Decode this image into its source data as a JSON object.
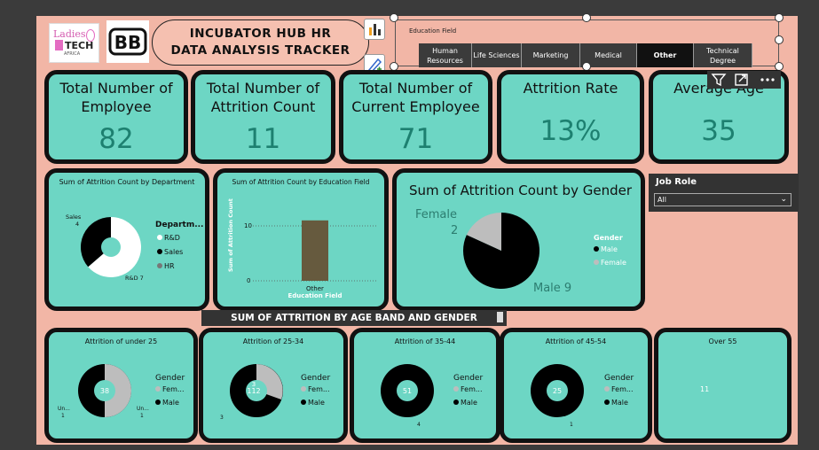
{
  "header": {
    "logo_ladies": "Ladies",
    "logo_tech": "TECH",
    "logo_africa": "AFRICA",
    "title": "INCUBATOR HUB HR DATA ANALYSIS  TRACKER"
  },
  "slicer": {
    "label": "Education Field",
    "options": [
      "Human Resources",
      "Life Sciences",
      "Marketing",
      "Medical",
      "Other",
      "Technical Degree"
    ],
    "selected": "Other"
  },
  "kpis": [
    {
      "title": "Total Number of Employee",
      "value": "82"
    },
    {
      "title": "Total Number of Attrition Count",
      "value": "11"
    },
    {
      "title": "Total Number of Current Employee",
      "value": "71"
    },
    {
      "title": "Attrition Rate",
      "value": "13%"
    },
    {
      "title": "Average Age",
      "value": "35"
    }
  ],
  "dept_chart": {
    "title": "Sum of Attrition Count by Department",
    "legend_title": "Departm...",
    "legend": [
      "R&D",
      "Sales",
      "HR"
    ],
    "label_sales": "Sales",
    "label_sales_val": "4",
    "label_rd": "R&D 7"
  },
  "edu_chart": {
    "title": "Sum of Attrition Count by Education Field",
    "ylabel": "Sum of Attrition Count",
    "xlabel": "Education Field",
    "tick_10": "10",
    "tick_0": "0",
    "category": "Other"
  },
  "gender_chart": {
    "title": "Sum of Attrition Count by Gender",
    "label_female": "Female",
    "label_female_val": "2",
    "label_male": "Male 9",
    "legend_title": "Gender",
    "legend": [
      "Male",
      "Female"
    ]
  },
  "job_role": {
    "label": "Job Role",
    "value": "All"
  },
  "banner": "SUM OF ATTRITION BY AGE BAND AND GENDER",
  "age_cards": [
    {
      "title": "Attrition of under 25",
      "center": "38",
      "legend_title": "Gender",
      "legend": [
        "Fem...",
        "Male"
      ],
      "lbl_a": "Un...",
      "lbl_a2": "1",
      "lbl_b": "Un...",
      "lbl_b2": "1"
    },
    {
      "title": "Attrition of 25-34",
      "center": "112",
      "top": "3",
      "legend_title": "Gender",
      "legend": [
        "Fem...",
        "Male"
      ],
      "lbl_a": "3"
    },
    {
      "title": "Attrition of 35-44",
      "center": "51",
      "legend_title": "Gender",
      "legend": [
        "Fem...",
        "Male"
      ],
      "lbl_a": "4"
    },
    {
      "title": "Attrition of 45-54",
      "center": "25",
      "legend_title": "Gender",
      "legend": [
        "Fem...",
        "Male"
      ],
      "lbl_a": "1"
    },
    {
      "title": "Over 55",
      "center": "11"
    }
  ],
  "chart_data": [
    {
      "type": "pie",
      "title": "Sum of Attrition Count by Department",
      "categories": [
        "R&D",
        "Sales",
        "HR"
      ],
      "values": [
        7,
        4,
        0
      ]
    },
    {
      "type": "bar",
      "title": "Sum of Attrition Count by Education Field",
      "categories": [
        "Other"
      ],
      "values": [
        11
      ],
      "xlabel": "Education Field",
      "ylabel": "Sum of Attrition Count"
    },
    {
      "type": "pie",
      "title": "Sum of Attrition Count by Gender",
      "categories": [
        "Male",
        "Female"
      ],
      "values": [
        9,
        2
      ]
    }
  ],
  "colors": {
    "card": "#6dd6c4",
    "canvas": "#f2b6a6",
    "bar": "#665a3e",
    "male": "#000000",
    "female": "#bdbdbd"
  }
}
